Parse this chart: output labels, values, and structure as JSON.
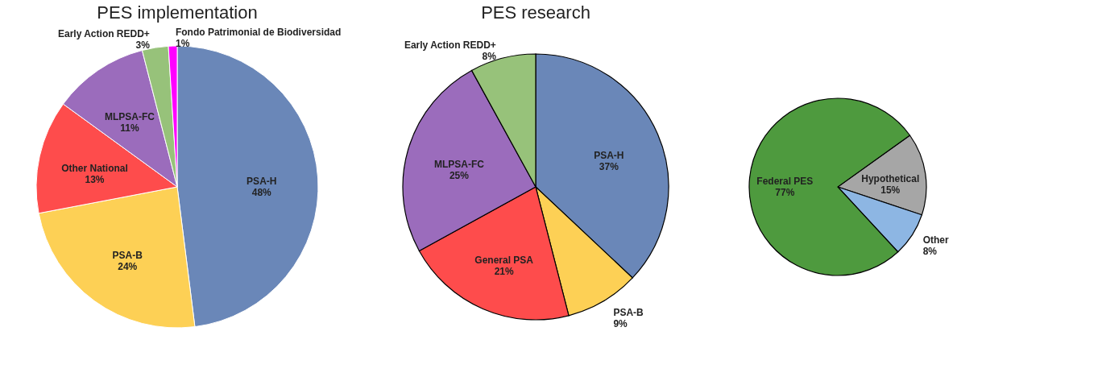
{
  "chart_data": [
    {
      "type": "pie",
      "title": "PES implementation",
      "categories": [
        "PSA-H",
        "PSA-B",
        "Other National",
        "MLPSA-FC",
        "Early Action REDD+",
        "Fondo Patrimonial de Biodiversidad"
      ],
      "values": [
        48,
        24,
        13,
        11,
        3,
        1
      ],
      "value_labels": [
        "48%",
        "24%",
        "13%",
        "11%",
        "3%",
        "1%"
      ],
      "colors": [
        "#6a87b8",
        "#fdd055",
        "#fe4c4c",
        "#9b6cbc",
        "#97c27a",
        "#ff00ff"
      ]
    },
    {
      "type": "pie",
      "title": "PES research",
      "categories": [
        "PSA-H",
        "PSA-B",
        "General PSA",
        "MLPSA-FC",
        "Early Action REDD+"
      ],
      "values": [
        37,
        9,
        21,
        25,
        8
      ],
      "value_labels": [
        "37%",
        "9%",
        "21%",
        "25%",
        "8%"
      ],
      "colors": [
        "#6a87b8",
        "#fdd055",
        "#fe4c4c",
        "#9b6cbc",
        "#97c27a"
      ]
    },
    {
      "type": "pie",
      "categories": [
        "Hypothetical",
        "Other",
        "Federal PES"
      ],
      "values": [
        15,
        8,
        77
      ],
      "value_labels": [
        "15%",
        "8%",
        "77%"
      ],
      "colors": [
        "#a6a6a6",
        "#8db6e3",
        "#4e9a3e"
      ]
    }
  ]
}
